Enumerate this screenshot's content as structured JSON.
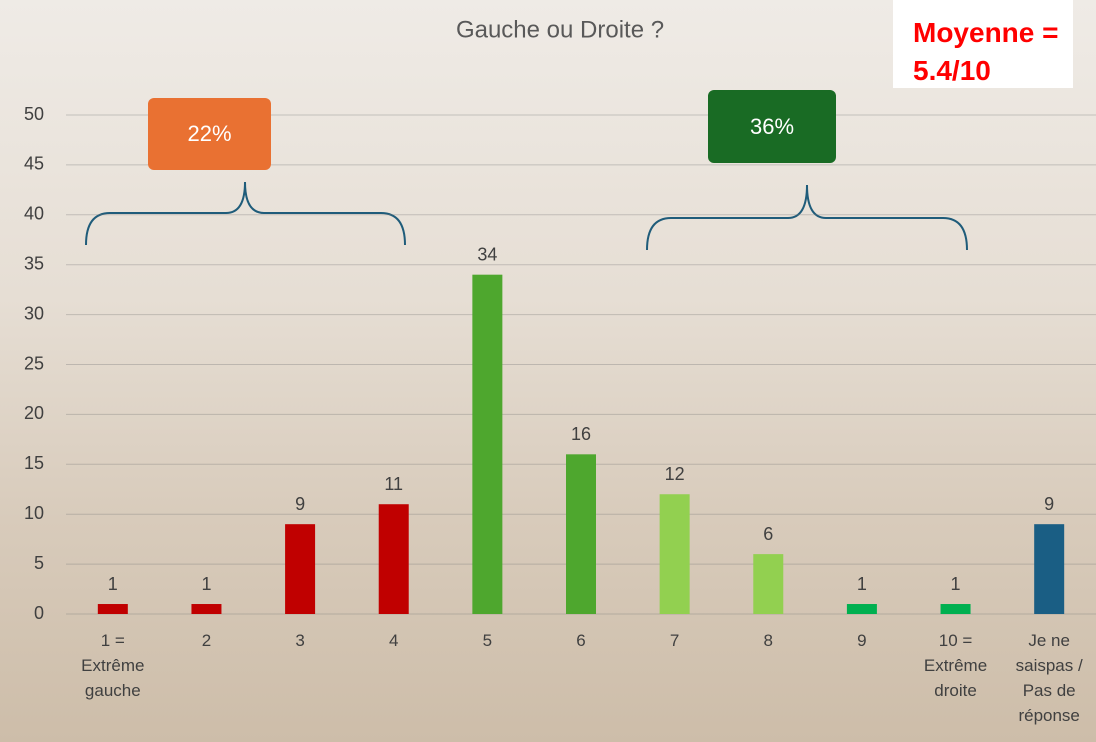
{
  "chart_data": {
    "type": "bar",
    "title": "Gauche ou Droite ?",
    "categories": [
      "1 = Extrême gauche",
      "2",
      "3",
      "4",
      "5",
      "6",
      "7",
      "8",
      "9",
      "10 = Extrême droite",
      "Je ne saispas / Pas de réponse"
    ],
    "values": [
      1,
      1,
      9,
      11,
      34,
      16,
      12,
      6,
      1,
      1,
      9
    ],
    "colors": [
      "#c00000",
      "#c00000",
      "#c00000",
      "#c00000",
      "#4ea72e",
      "#4ea72e",
      "#92d050",
      "#92d050",
      "#00b050",
      "#00b050",
      "#1a5e84"
    ],
    "ylim": [
      0,
      50
    ],
    "yticks": [
      0,
      5,
      10,
      15,
      20,
      25,
      30,
      35,
      40,
      45,
      50
    ],
    "grid": true,
    "annotations": [
      "22%",
      "36%",
      "Moyenne = 5.4/10"
    ]
  }
}
